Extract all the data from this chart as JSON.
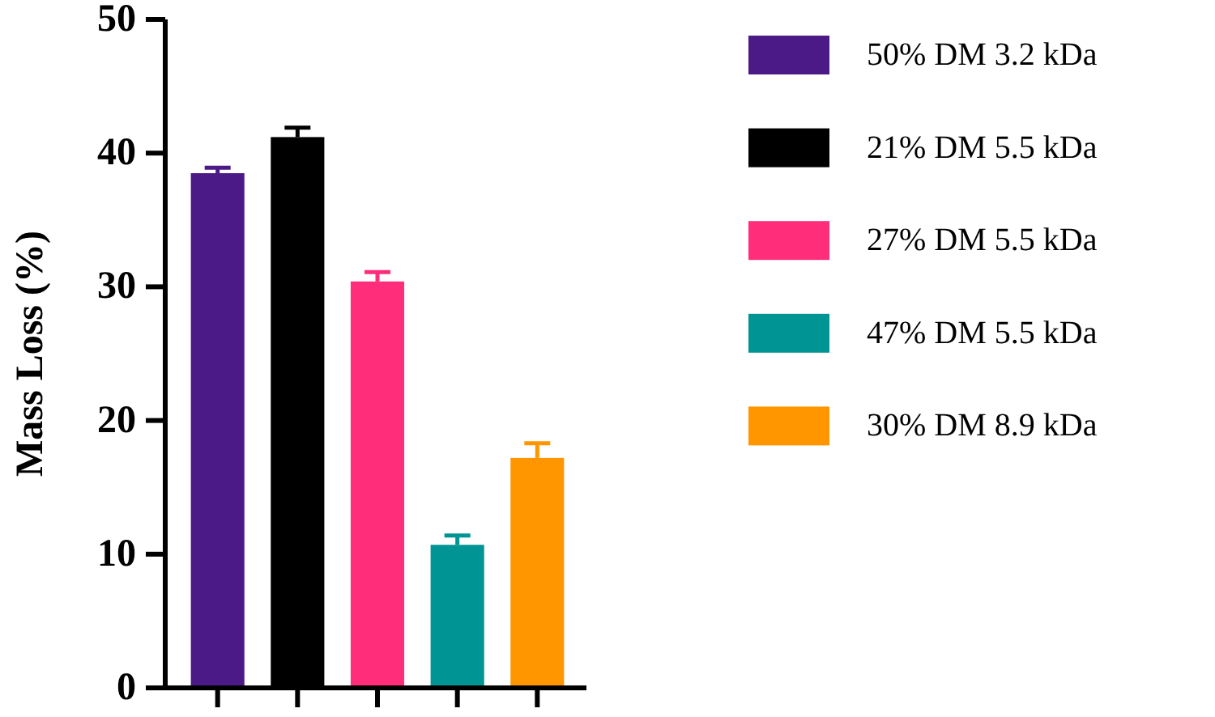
{
  "chart_data": {
    "type": "bar",
    "ylabel": "Mass Loss (%)",
    "categories": [
      null,
      null,
      null,
      null,
      null
    ],
    "series": [
      {
        "name": "50% DM 3.2 kDa",
        "color": "#4b1a86",
        "values": [
          38.5,
          null,
          null,
          null,
          null
        ],
        "errors": [
          0.4,
          null,
          null,
          null,
          null
        ]
      },
      {
        "name": "21% DM 5.5 kDa",
        "color": "#000000",
        "values": [
          null,
          41.2,
          null,
          null,
          null
        ],
        "errors": [
          null,
          0.7,
          null,
          null,
          null
        ]
      },
      {
        "name": "27% DM 5.5 kDa",
        "color": "#ff2d7a",
        "values": [
          null,
          null,
          30.4,
          null,
          null
        ],
        "errors": [
          null,
          null,
          0.7,
          null,
          null
        ]
      },
      {
        "name": "47% DM 5.5 kDa",
        "color": "#009494",
        "values": [
          null,
          null,
          null,
          10.7,
          null
        ],
        "errors": [
          null,
          null,
          null,
          0.7,
          null
        ]
      },
      {
        "name": "30% DM 8.9 kDa",
        "color": "#ff9600",
        "values": [
          null,
          null,
          null,
          null,
          17.2
        ],
        "errors": [
          null,
          null,
          null,
          null,
          1.1
        ]
      }
    ],
    "ylim": [
      0,
      50
    ],
    "yticks": [
      0,
      10,
      20,
      30,
      40,
      50
    ],
    "legend": "right"
  }
}
